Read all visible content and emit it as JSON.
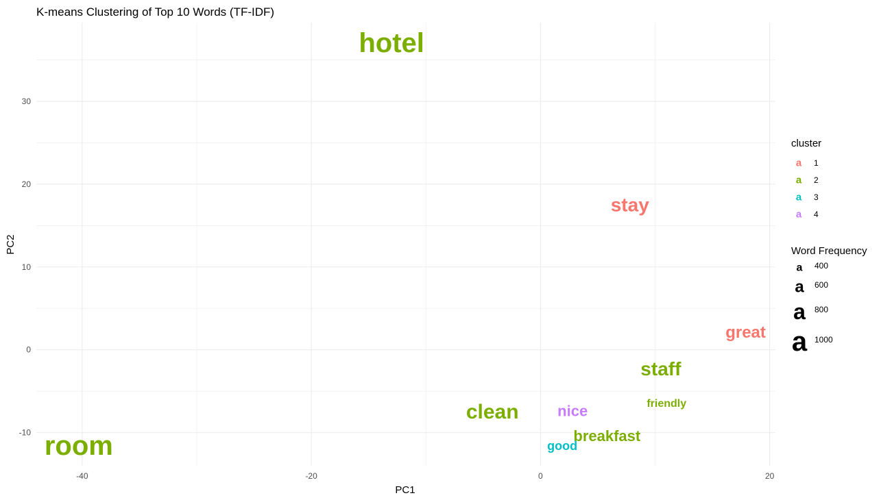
{
  "chart_data": {
    "type": "scatter",
    "title": "K-means Clustering of Top 10 Words (TF-IDF)",
    "xlabel": "PC1",
    "ylabel": "PC2",
    "xlim": [
      -44,
      20.5
    ],
    "ylim": [
      -14,
      39.5
    ],
    "xticks": [
      -40,
      -20,
      0,
      20
    ],
    "yticks": [
      -10,
      0,
      10,
      20,
      30
    ],
    "grid": true,
    "points": [
      {
        "label": "hotel",
        "x": -13,
        "y": 37,
        "cluster": "2",
        "frequency": 1000
      },
      {
        "label": "stay",
        "x": 7.8,
        "y": 17.5,
        "cluster": "1",
        "frequency": 700
      },
      {
        "label": "great",
        "x": 17.9,
        "y": 2.1,
        "cluster": "1",
        "frequency": 600
      },
      {
        "label": "staff",
        "x": 10.5,
        "y": -2.3,
        "cluster": "2",
        "frequency": 700
      },
      {
        "label": "friendly",
        "x": 11,
        "y": -6.5,
        "cluster": "2",
        "frequency": 350
      },
      {
        "label": "clean",
        "x": -4.2,
        "y": -7.5,
        "cluster": "2",
        "frequency": 750
      },
      {
        "label": "nice",
        "x": 2.8,
        "y": -7.4,
        "cluster": "4",
        "frequency": 550
      },
      {
        "label": "breakfast",
        "x": 5.8,
        "y": -10.4,
        "cluster": "2",
        "frequency": 550
      },
      {
        "label": "good",
        "x": 1.9,
        "y": -11.6,
        "cluster": "3",
        "frequency": 450
      },
      {
        "label": "room",
        "x": -40.3,
        "y": -11.6,
        "cluster": "2",
        "frequency": 1000
      }
    ],
    "legend": {
      "position": "right",
      "cluster": {
        "title": "cluster",
        "key_glyph": "a",
        "entries": [
          {
            "label": "1",
            "color": "#F8766D"
          },
          {
            "label": "2",
            "color": "#7CAE00"
          },
          {
            "label": "3",
            "color": "#00BFC4"
          },
          {
            "label": "4",
            "color": "#C77CFF"
          }
        ]
      },
      "size": {
        "title": "Word Frequency",
        "key_glyph": "a",
        "entries": [
          {
            "label": "400",
            "value": 400
          },
          {
            "label": "600",
            "value": 600
          },
          {
            "label": "800",
            "value": 800
          },
          {
            "label": "1000",
            "value": 1000
          }
        ]
      }
    },
    "colors": {
      "1": "#F8766D",
      "2": "#7CAE00",
      "3": "#00BFC4",
      "4": "#C77CFF",
      "grid": "#EBEBEB"
    }
  }
}
